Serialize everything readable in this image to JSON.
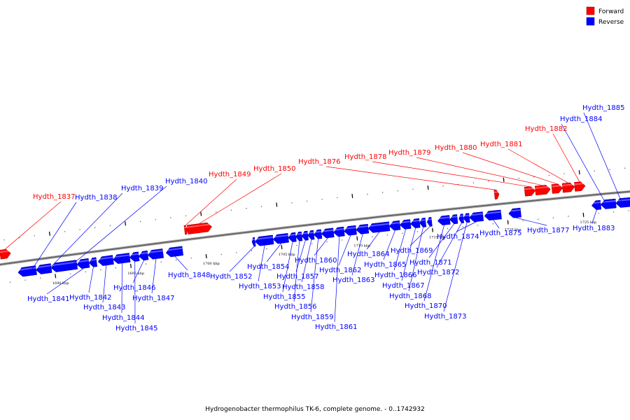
{
  "colors": {
    "forward": "#ff0000",
    "reverse": "#0000ff",
    "backbone": "#777777"
  },
  "legend": [
    {
      "label": "Forward",
      "color": "#ff0000"
    },
    {
      "label": "Reverse",
      "color": "#0000ff"
    }
  ],
  "caption": "Hydrogenobacter thermophilus TK-6, complete genome. - 0..1742932",
  "view": {
    "start_kbp": 1686.5,
    "end_kbp": 1728.2
  },
  "ticks": [
    {
      "kbp": 1690,
      "label": "1690 kbp"
    },
    {
      "kbp": 1695,
      "label": "1695 kbp"
    },
    {
      "kbp": 1700,
      "label": "1700 kbp"
    },
    {
      "kbp": 1705,
      "label": "1705 kbp"
    },
    {
      "kbp": 1710,
      "label": "1710 kbp"
    },
    {
      "kbp": 1715,
      "label": "1715 kbp"
    },
    {
      "kbp": 1720,
      "label": "1720 kbp"
    },
    {
      "kbp": 1725,
      "label": "1725 kbp"
    }
  ],
  "genes": [
    {
      "name": "Hydth_1837",
      "strand": "forward",
      "start": 1686.6,
      "end": 1687.3
    },
    {
      "name": "Hydth_1838",
      "strand": "reverse",
      "start": 1687.6,
      "end": 1688.8
    },
    {
      "name": "Hydth_1839",
      "strand": "reverse",
      "start": 1688.8,
      "end": 1689.8
    },
    {
      "name": "Hydth_1840",
      "strand": "reverse",
      "start": 1689.8,
      "end": 1691.5
    },
    {
      "name": "Hydth_1841",
      "strand": "reverse",
      "start": 1691.5,
      "end": 1692.3
    },
    {
      "name": "Hydth_1842",
      "strand": "reverse",
      "start": 1692.3,
      "end": 1692.8
    },
    {
      "name": "Hydth_1843",
      "strand": "reverse",
      "start": 1692.9,
      "end": 1693.9
    },
    {
      "name": "Hydth_1844",
      "strand": "reverse",
      "start": 1693.9,
      "end": 1695.0
    },
    {
      "name": "Hydth_1845",
      "strand": "reverse",
      "start": 1695.0,
      "end": 1695.6
    },
    {
      "name": "Hydth_1846",
      "strand": "reverse",
      "start": 1695.6,
      "end": 1696.2
    },
    {
      "name": "Hydth_1847",
      "strand": "reverse",
      "start": 1696.2,
      "end": 1697.2
    },
    {
      "name": "Hydth_1848",
      "strand": "reverse",
      "start": 1697.4,
      "end": 1698.5
    },
    {
      "name": "Hydth_1849",
      "strand": "forward",
      "start": 1698.8,
      "end": 1699.0
    },
    {
      "name": "Hydth_1850",
      "strand": "forward",
      "start": 1699.0,
      "end": 1700.6
    },
    {
      "name": "Hydth_1852",
      "strand": "reverse",
      "start": 1703.1,
      "end": 1703.3
    },
    {
      "name": "Hydth_1853",
      "strand": "reverse",
      "start": 1703.3,
      "end": 1704.5
    },
    {
      "name": "Hydth_1854",
      "strand": "reverse",
      "start": 1704.5,
      "end": 1705.5
    },
    {
      "name": "Hydth_1855",
      "strand": "reverse",
      "start": 1705.5,
      "end": 1706.0
    },
    {
      "name": "Hydth_1856",
      "strand": "reverse",
      "start": 1706.0,
      "end": 1706.4
    },
    {
      "name": "Hydth_1857",
      "strand": "reverse",
      "start": 1706.4,
      "end": 1706.8
    },
    {
      "name": "Hydth_1858",
      "strand": "reverse",
      "start": 1706.8,
      "end": 1707.2
    },
    {
      "name": "Hydth_1859",
      "strand": "reverse",
      "start": 1707.2,
      "end": 1707.7
    },
    {
      "name": "Hydth_1860",
      "strand": "reverse",
      "start": 1707.7,
      "end": 1708.5
    },
    {
      "name": "Hydth_1861",
      "strand": "reverse",
      "start": 1708.5,
      "end": 1709.2
    },
    {
      "name": "Hydth_1862",
      "strand": "reverse",
      "start": 1709.2,
      "end": 1710.0
    },
    {
      "name": "Hydth_1863",
      "strand": "reverse",
      "start": 1710.0,
      "end": 1710.8
    },
    {
      "name": "Hydth_1864",
      "strand": "reverse",
      "start": 1710.8,
      "end": 1712.2
    },
    {
      "name": "Hydth_1865",
      "strand": "reverse",
      "start": 1712.2,
      "end": 1712.9
    },
    {
      "name": "Hydth_1866",
      "strand": "reverse",
      "start": 1712.9,
      "end": 1713.6
    },
    {
      "name": "Hydth_1867",
      "strand": "reverse",
      "start": 1713.6,
      "end": 1714.2
    },
    {
      "name": "Hydth_1868",
      "strand": "reverse",
      "start": 1714.2,
      "end": 1714.6
    },
    {
      "name": "Hydth_1869",
      "strand": "reverse",
      "start": 1714.7,
      "end": 1715.0
    },
    {
      "name": "Hydth_1870",
      "strand": "reverse",
      "start": 1715.4,
      "end": 1716.2
    },
    {
      "name": "Hydth_1871",
      "strand": "reverse",
      "start": 1716.2,
      "end": 1716.7
    },
    {
      "name": "Hydth_1872",
      "strand": "reverse",
      "start": 1716.8,
      "end": 1717.1
    },
    {
      "name": "Hydth_1873",
      "strand": "reverse",
      "start": 1717.1,
      "end": 1717.5
    },
    {
      "name": "Hydth_1874",
      "strand": "reverse",
      "start": 1717.5,
      "end": 1718.4
    },
    {
      "name": "Hydth_1875",
      "strand": "reverse",
      "start": 1718.5,
      "end": 1719.6
    },
    {
      "name": "Hydth_1876",
      "strand": "forward",
      "start": 1719.3,
      "end": 1719.6
    },
    {
      "name": "Hydth_1877",
      "strand": "reverse",
      "start": 1720.1,
      "end": 1720.9
    },
    {
      "name": "Hydth_1878",
      "strand": "forward",
      "start": 1721.3,
      "end": 1722.0
    },
    {
      "name": "Hydth_1879",
      "strand": "forward",
      "start": 1722.0,
      "end": 1723.0
    },
    {
      "name": "Hydth_1880",
      "strand": "forward",
      "start": 1723.1,
      "end": 1723.8
    },
    {
      "name": "Hydth_1881",
      "strand": "forward",
      "start": 1723.8,
      "end": 1724.6
    },
    {
      "name": "Hydth_1882",
      "strand": "forward",
      "start": 1724.6,
      "end": 1725.3
    },
    {
      "name": "Hydth_1883",
      "strand": "reverse",
      "start": 1725.6,
      "end": 1726.2
    },
    {
      "name": "Hydth_1884",
      "strand": "reverse",
      "start": 1726.2,
      "end": 1727.2
    },
    {
      "name": "Hydth_1885",
      "strand": "reverse",
      "start": 1727.2,
      "end": 1728.2
    }
  ]
}
